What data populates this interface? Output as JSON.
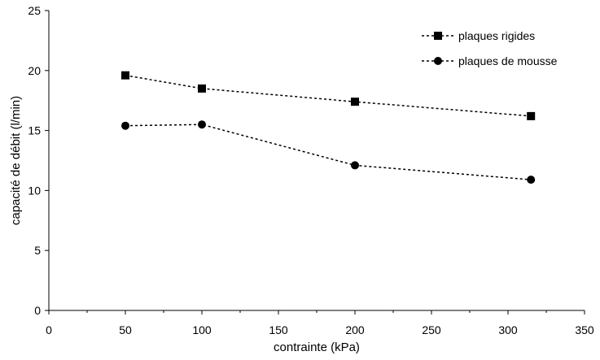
{
  "chart_data": {
    "type": "line",
    "xlabel": "contrainte (kPa)",
    "ylabel": "capacité de débit (l/min)",
    "xlim": [
      0,
      350
    ],
    "ylim": [
      0,
      25
    ],
    "x_ticks": [
      0,
      50,
      100,
      150,
      200,
      250,
      300,
      350
    ],
    "y_ticks": [
      0,
      5,
      10,
      15,
      20,
      25
    ],
    "grid": false,
    "legend_position": "top-right",
    "series": [
      {
        "name": "plaques rigides",
        "marker": "square",
        "line_style": "dotted",
        "color": "#000000",
        "x": [
          50,
          100,
          200,
          315
        ],
        "y": [
          19.6,
          18.5,
          17.4,
          16.2
        ]
      },
      {
        "name": "plaques de mousse",
        "marker": "circle",
        "line_style": "dotted",
        "color": "#000000",
        "x": [
          50,
          100,
          200,
          315
        ],
        "y": [
          15.4,
          15.5,
          12.1,
          10.9
        ]
      }
    ]
  }
}
